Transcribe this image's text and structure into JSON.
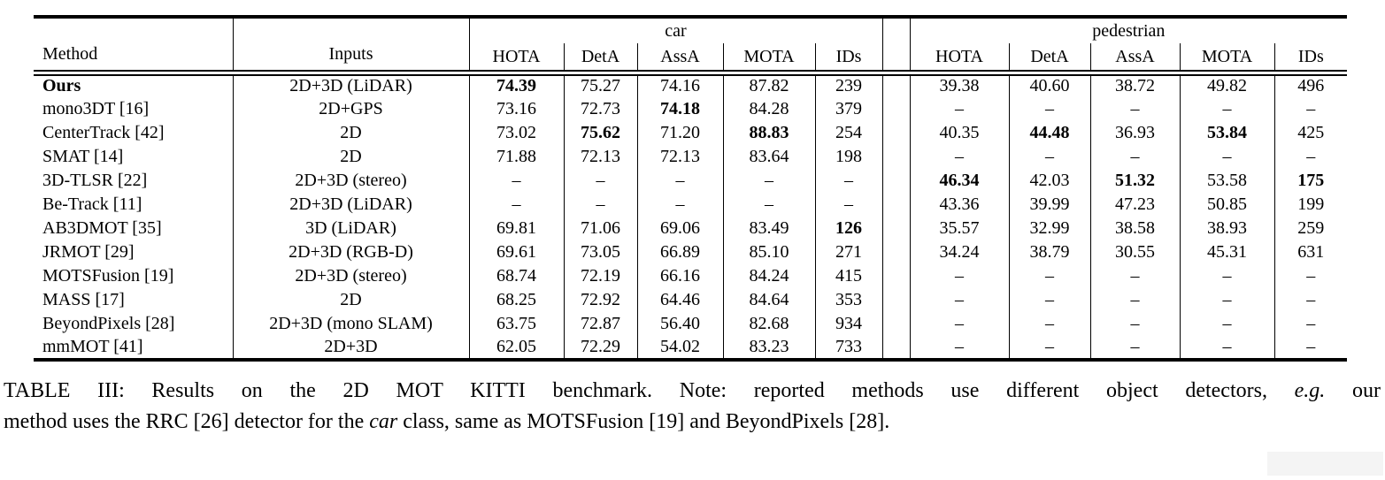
{
  "table": {
    "method_header": "Method",
    "inputs_header": "Inputs",
    "groups": [
      {
        "label": "car"
      },
      {
        "label": "pedestrian"
      }
    ],
    "metric_columns": [
      "HOTA",
      "DetA",
      "AssA",
      "MOTA",
      "IDs"
    ],
    "dash": "–",
    "rows": [
      {
        "method": "Ours",
        "bold_method": true,
        "inputs": "2D+3D (LiDAR)",
        "car": [
          {
            "v": "74.39",
            "b": true
          },
          {
            "v": "75.27",
            "b": false
          },
          {
            "v": "74.16",
            "b": false
          },
          {
            "v": "87.82",
            "b": false
          },
          {
            "v": "239",
            "b": false
          }
        ],
        "pedestrian": [
          {
            "v": "39.38",
            "b": false
          },
          {
            "v": "40.60",
            "b": false
          },
          {
            "v": "38.72",
            "b": false
          },
          {
            "v": "49.82",
            "b": false
          },
          {
            "v": "496",
            "b": false
          }
        ]
      },
      {
        "method": "mono3DT [16]",
        "bold_method": false,
        "inputs": "2D+GPS",
        "car": [
          {
            "v": "73.16",
            "b": false
          },
          {
            "v": "72.73",
            "b": false
          },
          {
            "v": "74.18",
            "b": true
          },
          {
            "v": "84.28",
            "b": false
          },
          {
            "v": "379",
            "b": false
          }
        ],
        "pedestrian": [
          {
            "v": "–",
            "b": false
          },
          {
            "v": "–",
            "b": false
          },
          {
            "v": "–",
            "b": false
          },
          {
            "v": "–",
            "b": false
          },
          {
            "v": "–",
            "b": false
          }
        ]
      },
      {
        "method": "CenterTrack [42]",
        "bold_method": false,
        "inputs": "2D",
        "car": [
          {
            "v": "73.02",
            "b": false
          },
          {
            "v": "75.62",
            "b": true
          },
          {
            "v": "71.20",
            "b": false
          },
          {
            "v": "88.83",
            "b": true
          },
          {
            "v": "254",
            "b": false
          }
        ],
        "pedestrian": [
          {
            "v": "40.35",
            "b": false
          },
          {
            "v": "44.48",
            "b": true
          },
          {
            "v": "36.93",
            "b": false
          },
          {
            "v": "53.84",
            "b": true
          },
          {
            "v": "425",
            "b": false
          }
        ]
      },
      {
        "method": "SMAT [14]",
        "bold_method": false,
        "inputs": "2D",
        "car": [
          {
            "v": "71.88",
            "b": false
          },
          {
            "v": "72.13",
            "b": false
          },
          {
            "v": "72.13",
            "b": false
          },
          {
            "v": "83.64",
            "b": false
          },
          {
            "v": "198",
            "b": false
          }
        ],
        "pedestrian": [
          {
            "v": "–",
            "b": false
          },
          {
            "v": "–",
            "b": false
          },
          {
            "v": "–",
            "b": false
          },
          {
            "v": "–",
            "b": false
          },
          {
            "v": "–",
            "b": false
          }
        ]
      },
      {
        "method": "3D-TLSR [22]",
        "bold_method": false,
        "inputs": "2D+3D (stereo)",
        "car": [
          {
            "v": "–",
            "b": false
          },
          {
            "v": "–",
            "b": false
          },
          {
            "v": "–",
            "b": false
          },
          {
            "v": "–",
            "b": false
          },
          {
            "v": "–",
            "b": false
          }
        ],
        "pedestrian": [
          {
            "v": "46.34",
            "b": true
          },
          {
            "v": "42.03",
            "b": false
          },
          {
            "v": "51.32",
            "b": true
          },
          {
            "v": "53.58",
            "b": false
          },
          {
            "v": "175",
            "b": true
          }
        ]
      },
      {
        "method": "Be-Track [11]",
        "bold_method": false,
        "inputs": "2D+3D (LiDAR)",
        "car": [
          {
            "v": "–",
            "b": false
          },
          {
            "v": "–",
            "b": false
          },
          {
            "v": "–",
            "b": false
          },
          {
            "v": "–",
            "b": false
          },
          {
            "v": "–",
            "b": false
          }
        ],
        "pedestrian": [
          {
            "v": "43.36",
            "b": false
          },
          {
            "v": "39.99",
            "b": false
          },
          {
            "v": "47.23",
            "b": false
          },
          {
            "v": "50.85",
            "b": false
          },
          {
            "v": "199",
            "b": false
          }
        ]
      },
      {
        "method": "AB3DMOT [35]",
        "bold_method": false,
        "inputs": "3D (LiDAR)",
        "car": [
          {
            "v": "69.81",
            "b": false
          },
          {
            "v": "71.06",
            "b": false
          },
          {
            "v": "69.06",
            "b": false
          },
          {
            "v": "83.49",
            "b": false
          },
          {
            "v": "126",
            "b": true
          }
        ],
        "pedestrian": [
          {
            "v": "35.57",
            "b": false
          },
          {
            "v": "32.99",
            "b": false
          },
          {
            "v": "38.58",
            "b": false
          },
          {
            "v": "38.93",
            "b": false
          },
          {
            "v": "259",
            "b": false
          }
        ]
      },
      {
        "method": "JRMOT [29]",
        "bold_method": false,
        "inputs": "2D+3D (RGB-D)",
        "car": [
          {
            "v": "69.61",
            "b": false
          },
          {
            "v": "73.05",
            "b": false
          },
          {
            "v": "66.89",
            "b": false
          },
          {
            "v": "85.10",
            "b": false
          },
          {
            "v": "271",
            "b": false
          }
        ],
        "pedestrian": [
          {
            "v": "34.24",
            "b": false
          },
          {
            "v": "38.79",
            "b": false
          },
          {
            "v": "30.55",
            "b": false
          },
          {
            "v": "45.31",
            "b": false
          },
          {
            "v": "631",
            "b": false
          }
        ]
      },
      {
        "method": "MOTSFusion [19]",
        "bold_method": false,
        "inputs": "2D+3D (stereo)",
        "car": [
          {
            "v": "68.74",
            "b": false
          },
          {
            "v": "72.19",
            "b": false
          },
          {
            "v": "66.16",
            "b": false
          },
          {
            "v": "84.24",
            "b": false
          },
          {
            "v": "415",
            "b": false
          }
        ],
        "pedestrian": [
          {
            "v": "–",
            "b": false
          },
          {
            "v": "–",
            "b": false
          },
          {
            "v": "–",
            "b": false
          },
          {
            "v": "–",
            "b": false
          },
          {
            "v": "–",
            "b": false
          }
        ]
      },
      {
        "method": "MASS [17]",
        "bold_method": false,
        "inputs": "2D",
        "car": [
          {
            "v": "68.25",
            "b": false
          },
          {
            "v": "72.92",
            "b": false
          },
          {
            "v": "64.46",
            "b": false
          },
          {
            "v": "84.64",
            "b": false
          },
          {
            "v": "353",
            "b": false
          }
        ],
        "pedestrian": [
          {
            "v": "–",
            "b": false
          },
          {
            "v": "–",
            "b": false
          },
          {
            "v": "–",
            "b": false
          },
          {
            "v": "–",
            "b": false
          },
          {
            "v": "–",
            "b": false
          }
        ]
      },
      {
        "method": "BeyondPixels [28]",
        "bold_method": false,
        "inputs": "2D+3D (mono SLAM)",
        "car": [
          {
            "v": "63.75",
            "b": false
          },
          {
            "v": "72.87",
            "b": false
          },
          {
            "v": "56.40",
            "b": false
          },
          {
            "v": "82.68",
            "b": false
          },
          {
            "v": "934",
            "b": false
          }
        ],
        "pedestrian": [
          {
            "v": "–",
            "b": false
          },
          {
            "v": "–",
            "b": false
          },
          {
            "v": "–",
            "b": false
          },
          {
            "v": "–",
            "b": false
          },
          {
            "v": "–",
            "b": false
          }
        ]
      },
      {
        "method": "mmMOT [41]",
        "bold_method": false,
        "inputs": "2D+3D",
        "car": [
          {
            "v": "62.05",
            "b": false
          },
          {
            "v": "72.29",
            "b": false
          },
          {
            "v": "54.02",
            "b": false
          },
          {
            "v": "83.23",
            "b": false
          },
          {
            "v": "733",
            "b": false
          }
        ],
        "pedestrian": [
          {
            "v": "–",
            "b": false
          },
          {
            "v": "–",
            "b": false
          },
          {
            "v": "–",
            "b": false
          },
          {
            "v": "–",
            "b": false
          },
          {
            "v": "–",
            "b": false
          }
        ]
      }
    ]
  },
  "caption": {
    "line1": [
      {
        "t": "TABLE III: Results on the 2D MOT KITTI benchmark. Note: reported methods use different object detectors, ",
        "i": false
      },
      {
        "t": "e.g.",
        "i": true
      },
      {
        "t": " our",
        "i": false
      }
    ],
    "line2": [
      {
        "t": "method uses the RRC [26] detector for the ",
        "i": false
      },
      {
        "t": "car",
        "i": true
      },
      {
        "t": " class, same as MOTSFusion [19] and BeyondPixels [28].",
        "i": false
      }
    ]
  }
}
